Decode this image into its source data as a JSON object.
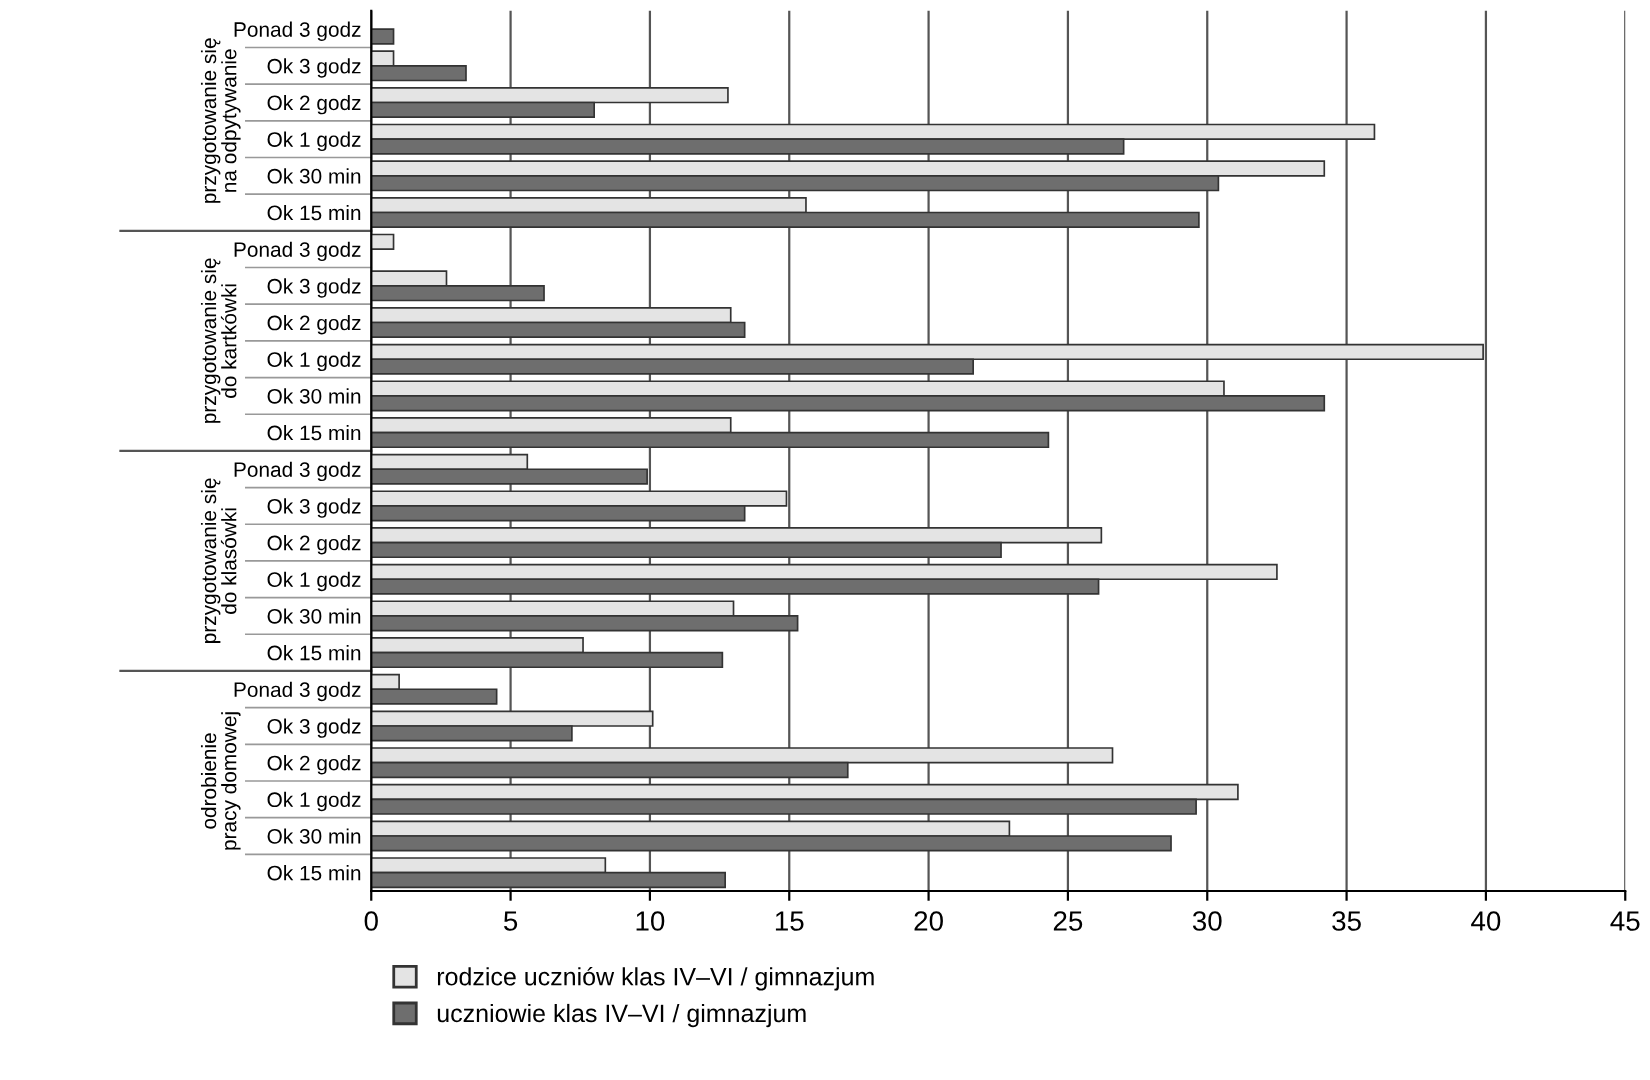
{
  "chart_data": {
    "type": "bar",
    "orientation": "horizontal",
    "categories": [
      "Ponad 3 godz",
      "Ok 3 godz",
      "Ok 2 godz",
      "Ok 1 godz",
      "Ok 30 min",
      "Ok 15 min",
      "Ponad 3 godz",
      "Ok 3 godz",
      "Ok 2 godz",
      "Ok 1 godz",
      "Ok 30 min",
      "Ok 15 min",
      "Ponad 3 godz",
      "Ok 3 godz",
      "Ok 2 godz",
      "Ok 1 godz",
      "Ok 30 min",
      "Ok 15 min",
      "Ponad 3 godz",
      "Ok 3 godz",
      "Ok 2 godz",
      "Ok 1 godz",
      "Ok 30 min",
      "Ok 15 min"
    ],
    "series": [
      {
        "name": "rodzice uczniów klas IV–VI / gimnazjum",
        "color": "#e4e4e4",
        "values": [
          0,
          0.8,
          12.8,
          36.0,
          34.2,
          15.6,
          0.8,
          2.7,
          12.9,
          39.9,
          30.6,
          12.9,
          5.6,
          14.9,
          26.2,
          32.5,
          13.0,
          7.6,
          1.0,
          10.1,
          26.6,
          31.1,
          22.9,
          8.4
        ]
      },
      {
        "name": "uczniowie klas IV–VI / gimnazjum",
        "color": "#6e6e6e",
        "values": [
          0.8,
          3.4,
          8.0,
          27.0,
          30.4,
          29.7,
          0,
          6.2,
          13.4,
          21.6,
          34.2,
          24.3,
          9.9,
          13.4,
          22.6,
          26.1,
          15.3,
          12.6,
          4.5,
          7.2,
          17.1,
          29.6,
          28.7,
          12.7
        ]
      }
    ],
    "annotations": [
      "przygotowanie się\nna odpytywanie",
      "przygotowanie się\ndo kartkówki",
      "przygotowanie się\ndo klasówki",
      "odrobienie\npracy domowej"
    ],
    "xlim": [
      0,
      45
    ],
    "xticks": [
      0,
      5,
      10,
      15,
      20,
      25,
      30,
      35,
      40,
      45
    ],
    "grid": "x",
    "legend": "bottom"
  }
}
